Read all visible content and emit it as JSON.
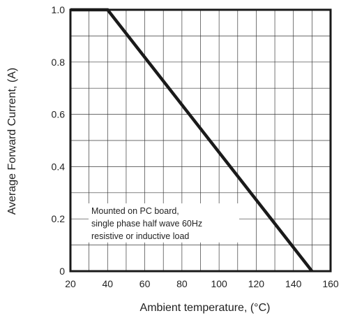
{
  "chart_data": {
    "type": "line",
    "xlabel": "Ambient temperature, (°C)",
    "ylabel": "Average Forward Current, (A)",
    "xlim": [
      20,
      160
    ],
    "ylim": [
      0,
      1.0
    ],
    "x_ticks": [
      20,
      40,
      60,
      80,
      100,
      120,
      140,
      160
    ],
    "x_tick_labels": [
      "20",
      "40",
      "60",
      "80",
      "100",
      "120",
      "140",
      "160"
    ],
    "y_ticks": [
      0,
      0.2,
      0.4,
      0.6,
      0.8,
      1.0
    ],
    "y_tick_labels": [
      "0",
      "0.2",
      "0.4",
      "0.6",
      "0.8",
      "1.0"
    ],
    "x_minor_step": 10,
    "y_minor_step": 0.1,
    "grid": true,
    "series": [
      {
        "x": [
          20,
          40,
          150
        ],
        "y": [
          1.0,
          1.0,
          0
        ],
        "color": "#1a1a1a"
      }
    ],
    "annotation": {
      "lines": [
        "Mounted on PC board,",
        "single phase half wave 60Hz",
        "resistive or inductive load"
      ]
    }
  }
}
